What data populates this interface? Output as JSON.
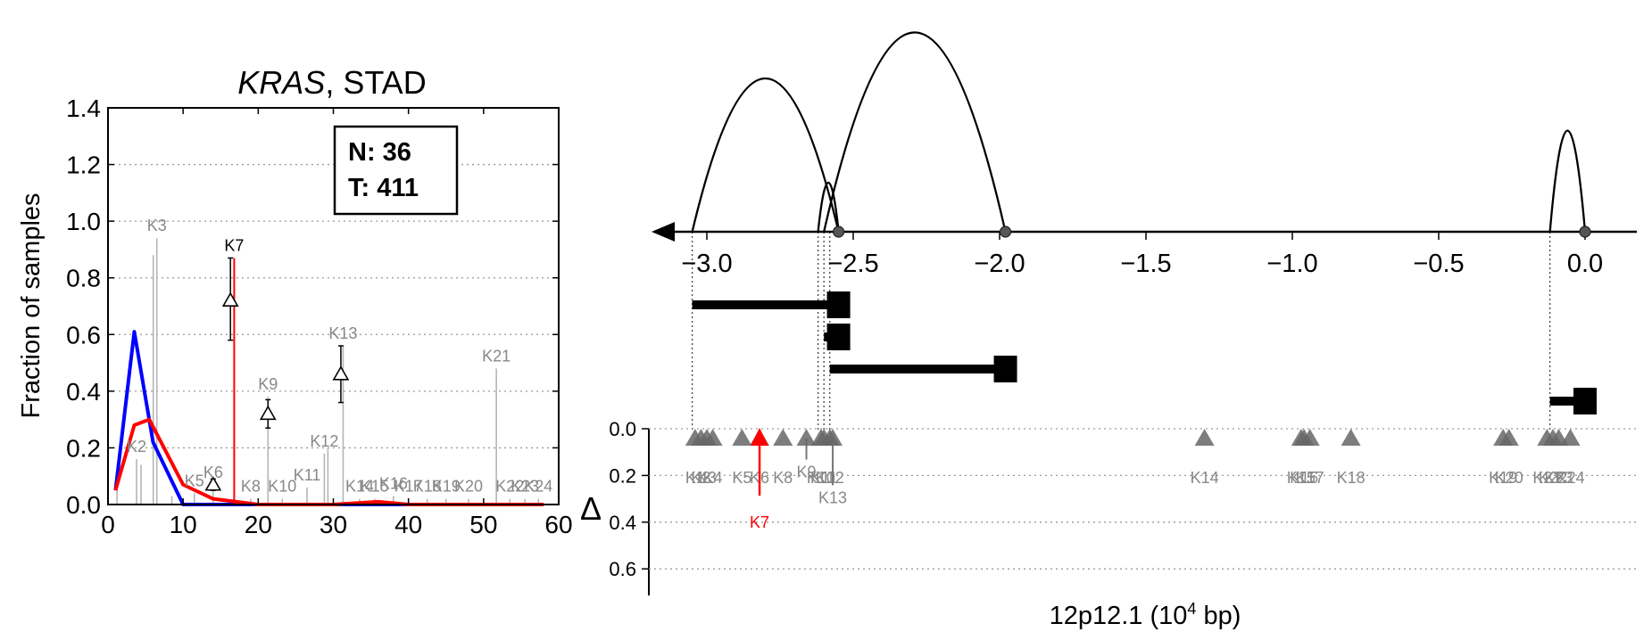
{
  "chart_data": [
    {
      "type": "line",
      "title": {
        "italic": "KRAS",
        "rest": ", STAD"
      },
      "xlabel": "",
      "ylabel": "Fraction of samples",
      "xlim": [
        0,
        60
      ],
      "ylim": [
        0,
        1.4
      ],
      "xticks": [
        "0",
        "10",
        "20",
        "30",
        "40",
        "50",
        "60"
      ],
      "yticks": [
        "0.0",
        "0.2",
        "0.4",
        "0.6",
        "0.8",
        "1.0",
        "1.2",
        "1.4"
      ],
      "grid": "horizontal dotted",
      "box": {
        "line1": "N: 36",
        "line2": "T: 411"
      },
      "series": [
        {
          "color": "#0000ff",
          "x": [
            1,
            3.5,
            6,
            10,
            14,
            20,
            30,
            40,
            50,
            58
          ],
          "y": [
            0.05,
            0.61,
            0.22,
            0.0,
            0.0,
            0.0,
            0.0,
            0.0,
            0.0,
            0.0
          ]
        },
        {
          "color": "#ff0000",
          "x": [
            1,
            3.5,
            5.5,
            10,
            14,
            20,
            30,
            36,
            40,
            50,
            58
          ],
          "y": [
            0.05,
            0.28,
            0.3,
            0.07,
            0.02,
            0.0,
            0.0,
            0.01,
            0.0,
            0.0,
            0.0
          ]
        }
      ],
      "bars": [
        {
          "label": "K1",
          "x": 1.2,
          "y": 0.05,
          "color": "#b5b5b5",
          "show_label": false
        },
        {
          "label": "K2",
          "x": 3.8,
          "y": 0.16,
          "color": "#b5b5b5",
          "show_label": true
        },
        {
          "label": "K3",
          "x": 6.5,
          "y": 0.94,
          "color": "#b5b5b5",
          "show_label": true
        },
        {
          "label": "K4",
          "x": 8.5,
          "y": 0.03,
          "color": "#b5b5b5",
          "show_label": false
        },
        {
          "label": "K5",
          "x": 11.5,
          "y": 0.04,
          "color": "#b5b5b5",
          "show_label": true
        },
        {
          "label": "K6",
          "x": 14.0,
          "y": 0.07,
          "color": "#b5b5b5",
          "show_label": true
        },
        {
          "label": "K7",
          "x": 16.8,
          "y": 0.87,
          "color": "#ff0000",
          "show_label": true
        },
        {
          "label": "K8",
          "x": 19.0,
          "y": 0.02,
          "color": "#b5b5b5",
          "show_label": true
        },
        {
          "label": "K9",
          "x": 21.3,
          "y": 0.38,
          "color": "#b5b5b5",
          "show_label": true
        },
        {
          "label": "K10",
          "x": 23.2,
          "y": 0.02,
          "color": "#b5b5b5",
          "show_label": true
        },
        {
          "label": "K11",
          "x": 26.5,
          "y": 0.06,
          "color": "#b5b5b5",
          "show_label": true
        },
        {
          "label": "K12",
          "x": 28.8,
          "y": 0.18,
          "color": "#b5b5b5",
          "show_label": true
        },
        {
          "label": "K13",
          "x": 31.3,
          "y": 0.56,
          "color": "#b5b5b5",
          "show_label": true
        },
        {
          "label": "K14",
          "x": 33.5,
          "y": 0.02,
          "color": "#b5b5b5",
          "show_label": true
        },
        {
          "label": "K15",
          "x": 35.5,
          "y": 0.02,
          "color": "#b5b5b5",
          "show_label": true
        },
        {
          "label": "K16",
          "x": 38.0,
          "y": 0.03,
          "color": "#b5b5b5",
          "show_label": true
        },
        {
          "label": "K17",
          "x": 40.0,
          "y": 0.02,
          "color": "#b5b5b5",
          "show_label": true
        },
        {
          "label": "K18",
          "x": 42.5,
          "y": 0.02,
          "color": "#b5b5b5",
          "show_label": true
        },
        {
          "label": "K19",
          "x": 45.0,
          "y": 0.02,
          "color": "#b5b5b5",
          "show_label": true
        },
        {
          "label": "K20",
          "x": 48.0,
          "y": 0.02,
          "color": "#b5b5b5",
          "show_label": true
        },
        {
          "label": "K21",
          "x": 51.7,
          "y": 0.48,
          "color": "#b5b5b5",
          "show_label": true
        },
        {
          "label": "K22",
          "x": 53.5,
          "y": 0.02,
          "color": "#b5b5b5",
          "show_label": true
        },
        {
          "label": "K23",
          "x": 55.5,
          "y": 0.02,
          "color": "#b5b5b5",
          "show_label": true
        },
        {
          "label": "K24",
          "x": 57.3,
          "y": 0.02,
          "color": "#b5b5b5",
          "show_label": true
        }
      ],
      "markers": [
        {
          "x": 14.0,
          "y": 0.07,
          "lo": 0.05,
          "hi": 0.09
        },
        {
          "x": 16.3,
          "y": 0.72,
          "lo": 0.58,
          "hi": 0.87
        },
        {
          "x": 21.3,
          "y": 0.32,
          "lo": 0.27,
          "hi": 0.37
        },
        {
          "x": 31.0,
          "y": 0.46,
          "lo": 0.36,
          "hi": 0.56
        }
      ]
    },
    {
      "type": "arc-diagram",
      "xlabel": {
        "pre": "12p12.1 (10",
        "sup": "4",
        "post": " bp)"
      },
      "xticks": [
        {
          "v": -3.0,
          "t": "−3.0"
        },
        {
          "v": -2.5,
          "t": "−2.5"
        },
        {
          "v": -2.0,
          "t": "−2.0"
        },
        {
          "v": -1.5,
          "t": "−1.5"
        },
        {
          "v": -1.0,
          "t": "−1.0"
        },
        {
          "v": -0.5,
          "t": "−0.5"
        },
        {
          "v": 0.0,
          "t": "0.0"
        }
      ],
      "xlim": [
        -3.3,
        0.2
      ],
      "exon_points": [
        -2.55,
        -1.98,
        0.0
      ],
      "arcs": [
        {
          "x1": -3.05,
          "x2": -2.55,
          "height": 1.0
        },
        {
          "x1": -2.6,
          "x2": -1.98,
          "height": 1.3
        },
        {
          "x1": -2.62,
          "x2": -2.55,
          "height": 0.32
        },
        {
          "x1": -0.12,
          "x2": 0.0,
          "height": 0.66
        }
      ],
      "transcripts": [
        {
          "start": -3.05,
          "end": -2.55
        },
        {
          "start": -2.6,
          "end": -2.55
        },
        {
          "start": -2.58,
          "end": -1.98
        },
        {
          "start": -0.12,
          "end": 0.0
        }
      ],
      "guides": [
        -3.05,
        -2.62,
        -2.6,
        -2.58,
        -0.12
      ],
      "delta_axis": {
        "label": "Δ",
        "ticks": [
          "0.0",
          "0.2",
          "0.4",
          "0.6"
        ],
        "ylim": [
          0,
          0.7
        ]
      },
      "sites": [
        {
          "label": "K1",
          "x": -3.04,
          "dy": 0.0
        },
        {
          "label": "K2",
          "x": -3.02,
          "dy": 0.0
        },
        {
          "label": "K3",
          "x": -3.0,
          "dy": 0.0
        },
        {
          "label": "K4",
          "x": -2.98,
          "dy": 0.0
        },
        {
          "label": "K5",
          "x": -2.88,
          "dy": 0.0
        },
        {
          "label": "K6",
          "x": -2.82,
          "dy": 0.0
        },
        {
          "label": "K7",
          "x": -2.82,
          "dy": 0.28
        },
        {
          "label": "K8",
          "x": -2.74,
          "dy": 0.0
        },
        {
          "label": "K9",
          "x": -2.66,
          "dy": 0.09
        },
        {
          "label": "K10",
          "x": -2.61,
          "dy": 0.0
        },
        {
          "label": "K11",
          "x": -2.6,
          "dy": 0.0
        },
        {
          "label": "K12",
          "x": -2.58,
          "dy": 0.0
        },
        {
          "label": "K13",
          "x": -2.57,
          "dy": 0.2
        },
        {
          "label": "K14",
          "x": -1.3,
          "dy": 0.0
        },
        {
          "label": "K15",
          "x": -0.97,
          "dy": 0.0
        },
        {
          "label": "K16",
          "x": -0.96,
          "dy": 0.0
        },
        {
          "label": "K17",
          "x": -0.94,
          "dy": 0.0
        },
        {
          "label": "K18",
          "x": -0.8,
          "dy": 0.0
        },
        {
          "label": "K19",
          "x": -0.28,
          "dy": 0.0
        },
        {
          "label": "K20",
          "x": -0.26,
          "dy": 0.0
        },
        {
          "label": "K21",
          "x": -0.13,
          "dy": 0.0
        },
        {
          "label": "K22",
          "x": -0.11,
          "dy": 0.0
        },
        {
          "label": "K23",
          "x": -0.09,
          "dy": 0.0
        },
        {
          "label": "K24",
          "x": -0.05,
          "dy": 0.0
        }
      ],
      "highlight": "K7"
    }
  ]
}
